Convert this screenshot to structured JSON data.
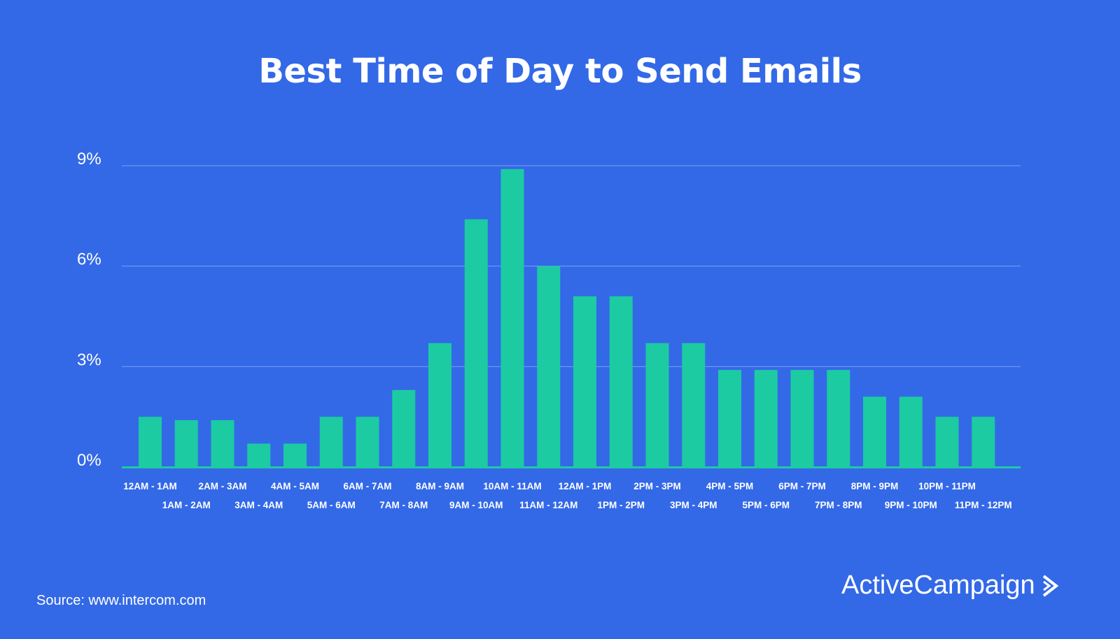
{
  "chart_data": {
    "type": "bar",
    "title": "Best Time of Day to Send Emails",
    "xlabel": "",
    "ylabel": "",
    "ylim": [
      0,
      9
    ],
    "yticks": [
      0,
      3,
      6,
      9
    ],
    "ytick_labels": [
      "0%",
      "3%",
      "6%",
      "9%"
    ],
    "grid": true,
    "categories": [
      "12AM - 1AM",
      "1AM - 2AM",
      "2AM - 3AM",
      "3AM - 4AM",
      "4AM - 5AM",
      "5AM - 6AM",
      "6AM - 7AM",
      "7AM - 8AM",
      "8AM - 9AM",
      "9AM - 10AM",
      "10AM - 11AM",
      "11AM - 12AM",
      "12AM - 1PM",
      "1PM - 2PM",
      "2PM - 3PM",
      "3PM - 4PM",
      "4PM - 5PM",
      "5PM - 6PM",
      "6PM - 7PM",
      "7PM - 8PM",
      "8PM - 9PM",
      "9PM - 10PM",
      "10PM - 11PM",
      "11PM - 12PM"
    ],
    "values": [
      1.5,
      1.4,
      1.4,
      0.7,
      0.7,
      1.5,
      1.5,
      2.3,
      3.7,
      7.4,
      8.9,
      6.0,
      5.1,
      5.1,
      3.7,
      3.7,
      2.9,
      2.9,
      2.9,
      2.9,
      2.1,
      2.1,
      1.5,
      1.5
    ],
    "colors": {
      "background": "#3369e7",
      "bar": "#1ccba1",
      "grid": "#7a9ff0",
      "text": "#ffffff"
    }
  },
  "footer": {
    "source": "Source: www.intercom.com",
    "brand": "ActiveCampaign"
  }
}
